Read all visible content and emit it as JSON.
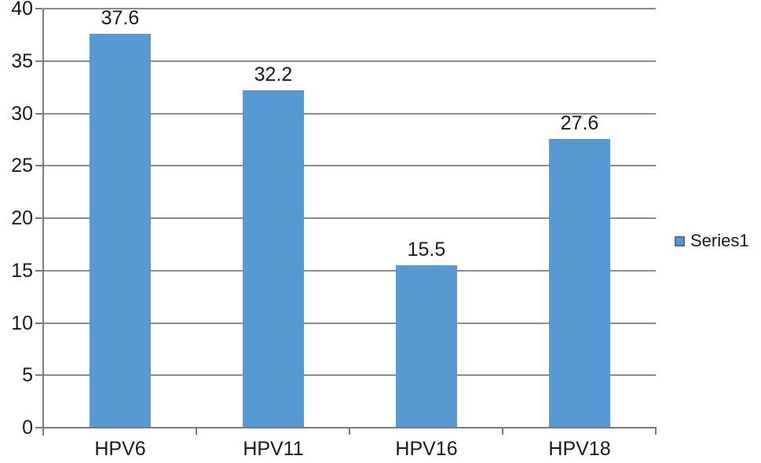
{
  "chart_data": {
    "type": "bar",
    "title": "",
    "categories": [
      "HPV6",
      "HPV11",
      "HPV16",
      "HPV18"
    ],
    "series": [
      {
        "name": "Series1",
        "values": [
          37.6,
          32.2,
          15.5,
          27.6
        ]
      }
    ],
    "data_labels": [
      "37.6",
      "32.2",
      "15.5",
      "27.6"
    ],
    "ylabel": "",
    "xlabel": "",
    "ylim": [
      0,
      40
    ],
    "ytick_step": 5,
    "ytick_labels": [
      "0",
      "5",
      "10",
      "15",
      "20",
      "25",
      "30",
      "35",
      "40"
    ],
    "grid": true,
    "legend": {
      "position": "right",
      "entries": [
        "Series1"
      ]
    },
    "colors": {
      "bar_fill": "#5999D3",
      "legend_marker_border": "#41719C",
      "gridline": "#8C8C8C",
      "axis": "#7A7A7A",
      "text": "#1A1A1A",
      "background": "#FFFFFF"
    }
  }
}
